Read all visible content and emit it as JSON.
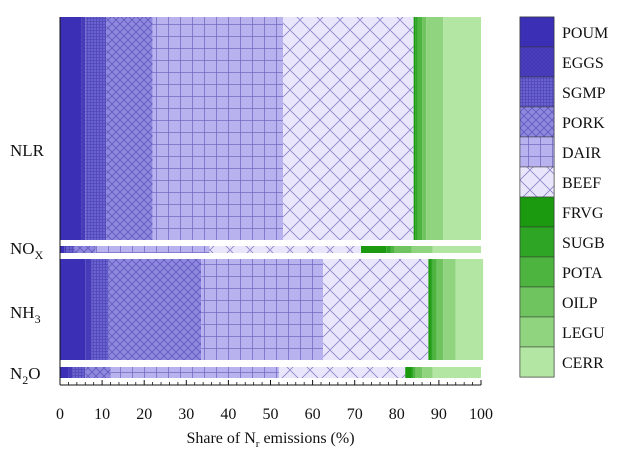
{
  "chart_data": {
    "type": "bar",
    "orientation": "horizontal",
    "stacked": true,
    "xlabel": {
      "main": "Share of N",
      "sub": "r",
      "rest": " emissions (%)"
    },
    "xlim": [
      0,
      100
    ],
    "x_ticks": [
      0,
      10,
      20,
      30,
      40,
      50,
      60,
      70,
      80,
      90,
      100
    ],
    "categories": [
      {
        "label": "NLR",
        "sub": "",
        "after": ""
      },
      {
        "label": "NO",
        "sub": "X",
        "after": ""
      },
      {
        "label": "NH",
        "sub": "3",
        "after": ""
      },
      {
        "label": "N",
        "sub": "2",
        "after": "O"
      }
    ],
    "legend_position": "right",
    "series": [
      {
        "name": "POUM",
        "color": "#3a2fb5",
        "pattern": "solid",
        "values": [
          5.0,
          1.0,
          6.0,
          2.0
        ]
      },
      {
        "name": "EGGS",
        "color": "#4a3fc2",
        "pattern": "xfine",
        "values": [
          1.0,
          0.5,
          1.5,
          1.0
        ]
      },
      {
        "name": "SGMP",
        "color": "#6a62d0",
        "pattern": "gridfine",
        "values": [
          5.0,
          2.0,
          4.0,
          3.0
        ]
      },
      {
        "name": "PORK",
        "color": "#8f88df",
        "pattern": "xmed",
        "values": [
          11.0,
          5.0,
          22.0,
          6.0
        ]
      },
      {
        "name": "DAIR",
        "color": "#b8b2ef",
        "pattern": "grid",
        "values": [
          31.0,
          27.0,
          29.0,
          40.0
        ]
      },
      {
        "name": "BEEF",
        "color": "#e9e6fb",
        "pattern": "xlarge",
        "values": [
          31.0,
          36.0,
          25.0,
          30.0
        ]
      },
      {
        "name": "FRVG",
        "color": "#1b9a10",
        "pattern": "solid",
        "values": [
          0.5,
          6.0,
          0.5,
          1.5
        ]
      },
      {
        "name": "SUGB",
        "color": "#2ea524",
        "pattern": "solid",
        "values": [
          0.5,
          1.0,
          0.5,
          0.5
        ]
      },
      {
        "name": "POTA",
        "color": "#4cb43f",
        "pattern": "solid",
        "values": [
          1.0,
          1.0,
          1.0,
          0.5
        ]
      },
      {
        "name": "OILP",
        "color": "#70c460",
        "pattern": "solid",
        "values": [
          1.0,
          4.0,
          1.5,
          1.5
        ]
      },
      {
        "name": "LEGU",
        "color": "#90d47f",
        "pattern": "solid",
        "values": [
          4.0,
          5.0,
          3.0,
          2.5
        ]
      },
      {
        "name": "CERR",
        "color": "#b3e5a3",
        "pattern": "solid",
        "values": [
          9.0,
          11.5,
          6.5,
          11.5
        ]
      }
    ]
  }
}
